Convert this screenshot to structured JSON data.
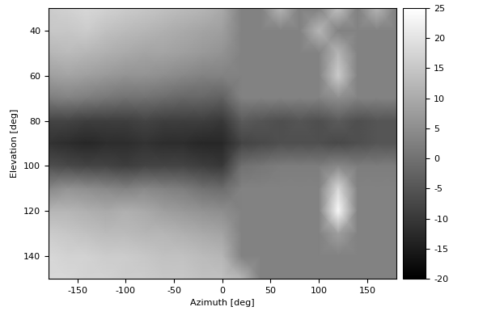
{
  "chart_data": {
    "type": "heatmap",
    "xlabel": "Azimuth [deg]",
    "ylabel": "Elevation [deg]",
    "x": [
      -180,
      -160,
      -140,
      -120,
      -100,
      -80,
      -60,
      -40,
      -20,
      0,
      20,
      40,
      60,
      80,
      100,
      120,
      140,
      160,
      180
    ],
    "y": [
      30,
      40,
      50,
      60,
      70,
      80,
      90,
      100,
      110,
      120,
      130,
      140,
      150
    ],
    "cells": [
      [
        16,
        17,
        18,
        17,
        16,
        15,
        14,
        13,
        12,
        10,
        3,
        3,
        12,
        3,
        3,
        14,
        3,
        12,
        3
      ],
      [
        15,
        15,
        16,
        14,
        13,
        12,
        11,
        10,
        9,
        8,
        3,
        3,
        3,
        3,
        12,
        3,
        3,
        3,
        3
      ],
      [
        12,
        13,
        12,
        11,
        10,
        9,
        9,
        8,
        7,
        6,
        3,
        3,
        3,
        3,
        3,
        12,
        3,
        3,
        3
      ],
      [
        8,
        9,
        8,
        7,
        6,
        6,
        5,
        4,
        3,
        3,
        3,
        3,
        3,
        3,
        3,
        16,
        3,
        3,
        3
      ],
      [
        2,
        3,
        2,
        1,
        0,
        0,
        -1,
        -2,
        -2,
        -3,
        3,
        3,
        3,
        3,
        3,
        5,
        3,
        3,
        3
      ],
      [
        -8,
        -8,
        -9,
        -9,
        -9,
        -8,
        -9,
        -9,
        -9,
        -10,
        -4,
        -5,
        -6,
        -5,
        -6,
        -4,
        -6,
        -5,
        -5
      ],
      [
        -11,
        -12,
        -13,
        -12,
        -12,
        -11,
        -12,
        -12,
        -13,
        -13,
        -8,
        -7,
        -6,
        -6,
        -6,
        -7,
        -6,
        -5,
        -5
      ],
      [
        -6,
        -7,
        -8,
        -8,
        -9,
        -8,
        -8,
        -8,
        -9,
        -10,
        0,
        1,
        2,
        2,
        2,
        4,
        2,
        2,
        2
      ],
      [
        4,
        6,
        5,
        4,
        3,
        4,
        3,
        2,
        0,
        -1,
        3,
        3,
        3,
        3,
        3,
        18,
        3,
        3,
        3
      ],
      [
        12,
        12,
        11,
        10,
        11,
        10,
        8,
        7,
        6,
        5,
        3,
        3,
        3,
        3,
        3,
        24,
        3,
        3,
        3
      ],
      [
        16,
        15,
        14,
        13,
        13,
        12,
        12,
        11,
        10,
        9,
        3,
        3,
        3,
        3,
        3,
        8,
        3,
        3,
        3
      ],
      [
        18,
        17,
        17,
        16,
        16,
        15,
        14,
        14,
        13,
        12,
        3,
        3,
        3,
        3,
        3,
        3,
        3,
        3,
        3
      ],
      [
        18,
        18,
        17,
        17,
        16,
        16,
        15,
        15,
        14,
        14,
        12,
        3,
        3,
        3,
        3,
        3,
        3,
        3,
        3
      ]
    ],
    "xlim": [
      -180,
      180
    ],
    "xticks": [
      -150,
      -100,
      -50,
      0,
      50,
      100,
      150
    ],
    "ylim": [
      150,
      30
    ],
    "yticks": [
      40,
      60,
      80,
      100,
      120,
      140
    ],
    "colorbar_range": [
      -20,
      25
    ],
    "colorbar_ticks": [
      -20,
      -15,
      -10,
      -5,
      0,
      5,
      10,
      15,
      20,
      25
    ],
    "color": "gray"
  }
}
